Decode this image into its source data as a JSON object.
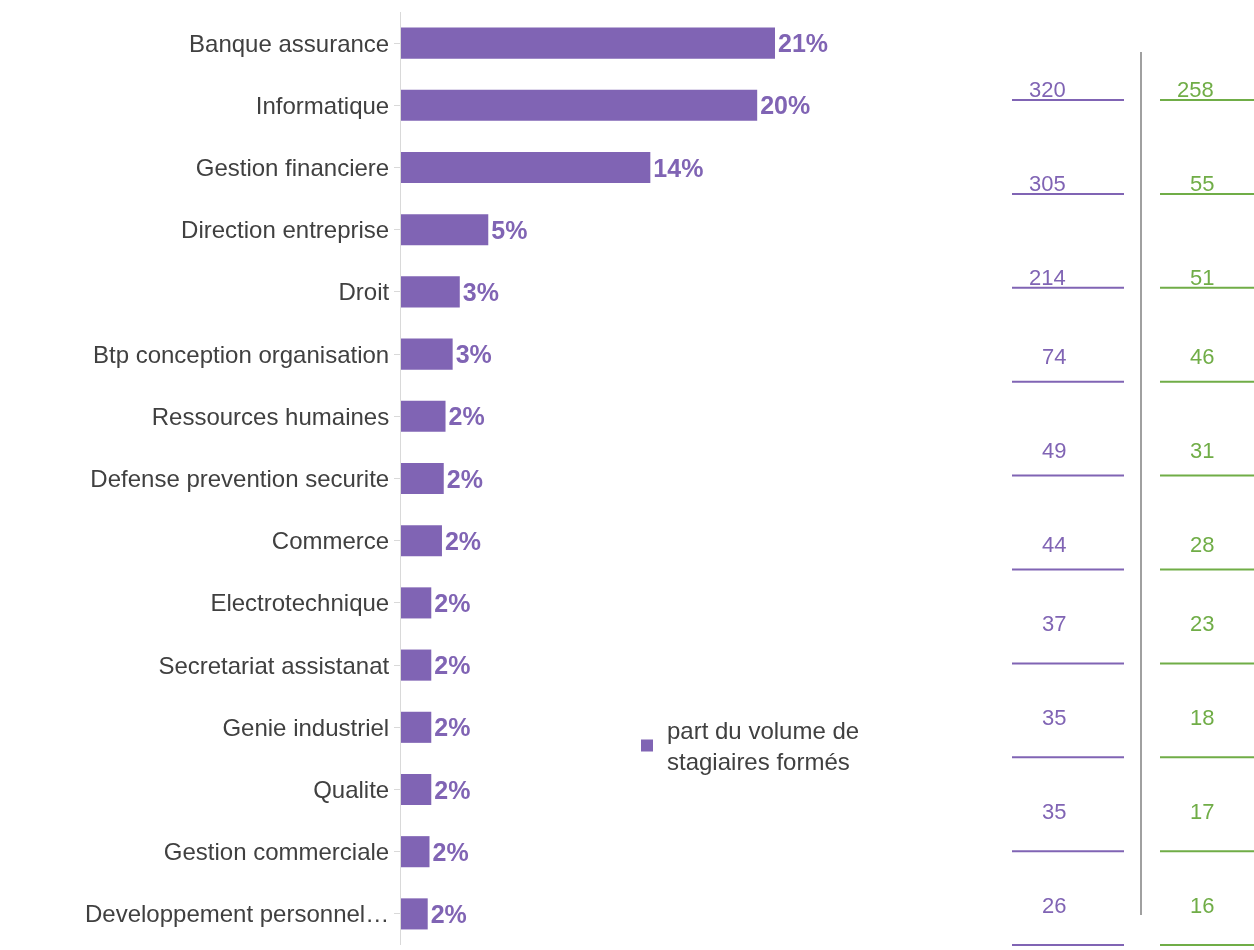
{
  "chart_data": {
    "type": "bar",
    "orientation": "horizontal",
    "categories": [
      "Banque assurance",
      "Informatique",
      "Gestion financiere",
      "Direction entreprise",
      "Droit",
      "Btp conception organisation",
      "Ressources humaines",
      "Defense prevention securite",
      "Commerce",
      "Electrotechnique",
      "Secretariat assistanat",
      "Genie industriel",
      "Qualite",
      "Gestion commerciale",
      "Developpement personnel…"
    ],
    "series": [
      {
        "name": "part du volume de stagiaires formés",
        "color": "#8064b4",
        "values": [
          21.0,
          20.0,
          14.0,
          4.9,
          3.3,
          2.9,
          2.5,
          2.4,
          2.3,
          1.7,
          1.7,
          1.7,
          1.7,
          1.6,
          1.5
        ],
        "value_labels": [
          "21%",
          "20%",
          "14%",
          "5%",
          "3%",
          "3%",
          "2%",
          "2%",
          "2%",
          "2%",
          "2%",
          "2%",
          "2%",
          "2%",
          "2%"
        ]
      }
    ],
    "legend": "bottom right",
    "annotations": [
      "320",
      "305",
      "214",
      "74",
      "49",
      "44",
      "37",
      "35",
      "35",
      "26",
      "258",
      "55",
      "51",
      "46",
      "31",
      "28",
      "23",
      "18",
      "17",
      "16"
    ]
  }
}
